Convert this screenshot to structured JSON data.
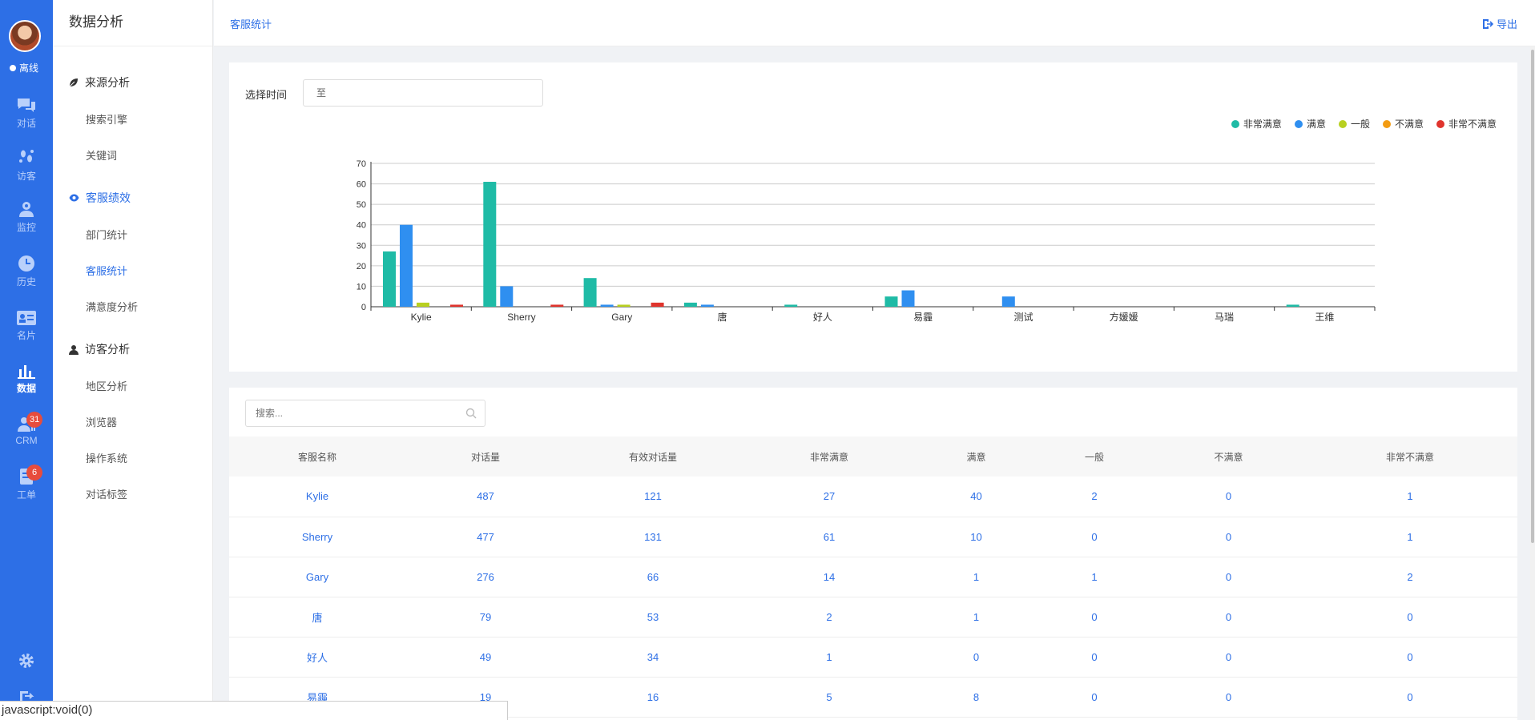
{
  "rail": {
    "status": "离线",
    "items": [
      {
        "label": "对话",
        "icon": "chat-icon"
      },
      {
        "label": "访客",
        "icon": "footprint-icon"
      },
      {
        "label": "监控",
        "icon": "monitor-icon"
      },
      {
        "label": "历史",
        "icon": "clock-icon"
      },
      {
        "label": "名片",
        "icon": "card-icon"
      },
      {
        "label": "数据",
        "icon": "bar-chart-icon"
      },
      {
        "label": "CRM",
        "icon": "crm-icon",
        "badge": "31"
      },
      {
        "label": "工单",
        "icon": "ticket-icon",
        "badge": "6"
      }
    ]
  },
  "sidebar": {
    "title": "数据分析",
    "groups": [
      {
        "label": "来源分析",
        "icon": "leaf-icon",
        "links": [
          "搜索引擎",
          "关键词"
        ]
      },
      {
        "label": "客服绩效",
        "icon": "eye-icon",
        "links": [
          "部门统计",
          "客服统计",
          "满意度分析"
        ]
      },
      {
        "label": "访客分析",
        "icon": "user-icon",
        "links": [
          "地区分析",
          "浏览器",
          "操作系统",
          "对话标签"
        ]
      }
    ],
    "active_link": "客服统计"
  },
  "header": {
    "breadcrumb": "客服统计",
    "export_label": "导出"
  },
  "filter": {
    "label": "选择时间",
    "value": "至"
  },
  "chart_data": {
    "type": "bar",
    "categories": [
      "Kylie",
      "Sherry",
      "Gary",
      "唐",
      "好人",
      "易霾",
      "测试",
      "方媛媛",
      "马瑞",
      "王维"
    ],
    "ylim": [
      0,
      70
    ],
    "yticks": [
      0,
      10,
      20,
      30,
      40,
      50,
      60,
      70
    ],
    "legend_position": "top-right",
    "grid": true,
    "series": [
      {
        "name": "非常满意",
        "color": "#1fbba6",
        "values": [
          27,
          61,
          14,
          2,
          1,
          5,
          0,
          0,
          0,
          1
        ]
      },
      {
        "name": "满意",
        "color": "#2f8ff0",
        "values": [
          40,
          10,
          1,
          1,
          0,
          8,
          5,
          0,
          0,
          0
        ]
      },
      {
        "name": "一般",
        "color": "#b8d020",
        "values": [
          2,
          0,
          1,
          0,
          0,
          0,
          0,
          0,
          0,
          0
        ]
      },
      {
        "name": "不满意",
        "color": "#f39c12",
        "values": [
          0,
          0,
          0,
          0,
          0,
          0,
          0,
          0,
          0,
          0
        ]
      },
      {
        "name": "非常不满意",
        "color": "#e0342d",
        "values": [
          1,
          1,
          2,
          0,
          0,
          0,
          0,
          0,
          0,
          0
        ]
      }
    ]
  },
  "table": {
    "search_placeholder": "搜索...",
    "columns": [
      "客服名称",
      "对话量",
      "有效对话量",
      "非常满意",
      "满意",
      "一般",
      "不满意",
      "非常不满意"
    ],
    "rows": [
      [
        "Kylie",
        "487",
        "121",
        "27",
        "40",
        "2",
        "0",
        "1"
      ],
      [
        "Sherry",
        "477",
        "131",
        "61",
        "10",
        "0",
        "0",
        "1"
      ],
      [
        "Gary",
        "276",
        "66",
        "14",
        "1",
        "1",
        "0",
        "2"
      ],
      [
        "唐",
        "79",
        "53",
        "2",
        "1",
        "0",
        "0",
        "0"
      ],
      [
        "好人",
        "49",
        "34",
        "1",
        "0",
        "0",
        "0",
        "0"
      ],
      [
        "易霾",
        "19",
        "16",
        "5",
        "8",
        "0",
        "0",
        "0"
      ]
    ]
  },
  "statusbar": "javascript:void(0)"
}
